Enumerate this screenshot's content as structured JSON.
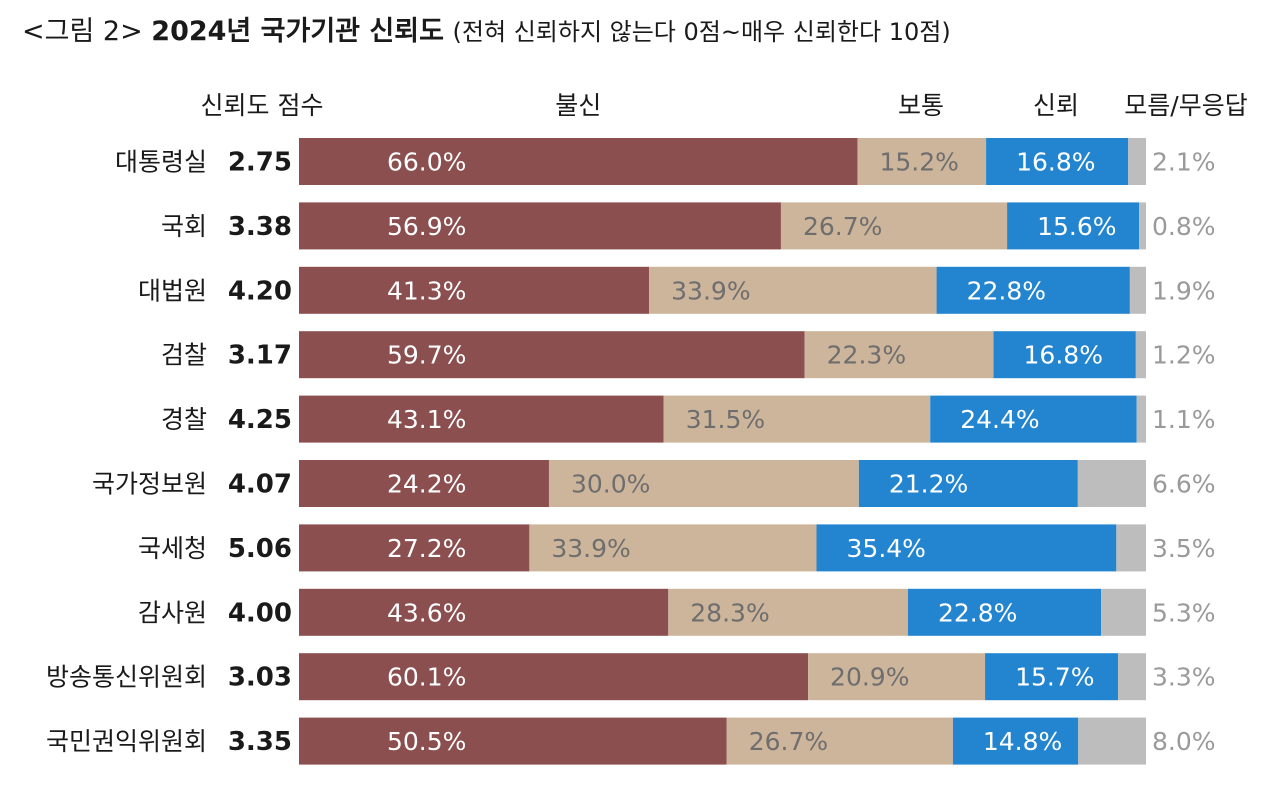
{
  "title": {
    "prefix": "<그림 2>",
    "main": "2024년 국가기관 신뢰도",
    "subtitle": "(전혀 신뢰하지 않는다 0점~매우 신뢰한다 10점)"
  },
  "colors": {
    "distrust": "#8c4f50",
    "neutral": "#cdb59b",
    "trust": "#2385d0",
    "unknown": "#bdbdbd",
    "label_on_dark": "#ffffff",
    "label_on_light": "#6e6e6e",
    "unknown_label": "#9a9a9a",
    "text": "#1a1a1a"
  },
  "chart_data": {
    "type": "bar",
    "stacked": true,
    "orientation": "horizontal",
    "score_header": "신뢰도 점수",
    "categories": [
      "대통령실",
      "국회",
      "대법원",
      "검찰",
      "경찰",
      "국가정보원",
      "국세청",
      "감사원",
      "방송통신위원회",
      "국민권익위원회"
    ],
    "scores": [
      "2.75",
      "3.38",
      "4.20",
      "3.17",
      "4.25",
      "4.07",
      "5.06",
      "4.00",
      "3.03",
      "3.35"
    ],
    "series": [
      {
        "name": "불신",
        "values": [
          66.0,
          56.9,
          41.3,
          59.7,
          43.1,
          24.2,
          27.2,
          43.6,
          60.1,
          50.5
        ]
      },
      {
        "name": "보통",
        "values": [
          15.2,
          26.7,
          33.9,
          22.3,
          31.5,
          30.0,
          33.9,
          28.3,
          20.9,
          26.7
        ]
      },
      {
        "name": "신뢰",
        "values": [
          16.8,
          15.6,
          22.8,
          16.8,
          24.4,
          21.2,
          35.4,
          22.8,
          15.7,
          14.8
        ]
      },
      {
        "name": "모름/무응답",
        "values": [
          2.1,
          0.8,
          1.9,
          1.2,
          1.1,
          6.6,
          3.5,
          5.3,
          3.3,
          8.0
        ]
      }
    ],
    "unit": "%",
    "xlim": [
      0,
      100
    ]
  }
}
